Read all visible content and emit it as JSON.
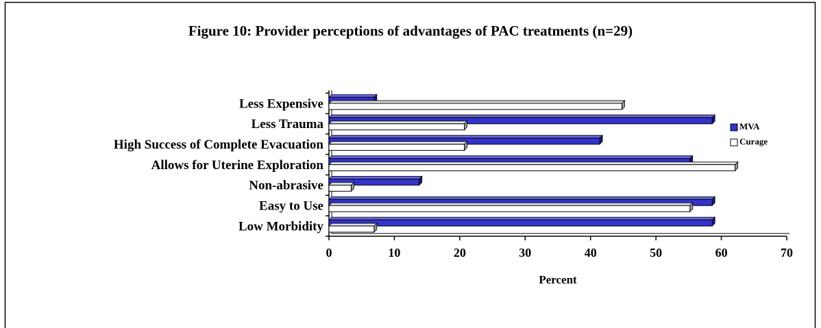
{
  "chart_data": {
    "type": "hbar",
    "title": "Figure 10: Provider perceptions of advantages of PAC treatments (n=29)",
    "categories": [
      "Less Expensive",
      "Less Trauma",
      "High Success of Complete Evacuation",
      "Allows for Uterine Exploration",
      "Non-abrasive",
      "Easy to Use",
      "Low Morbidity"
    ],
    "series": [
      {
        "name": "MVA",
        "color": "#3333cc",
        "values": [
          6.9,
          58.6,
          41.4,
          55.2,
          13.8,
          58.6,
          58.6
        ]
      },
      {
        "name": "Curage",
        "color": "#ffffff",
        "values": [
          44.8,
          20.7,
          20.7,
          62.1,
          3.4,
          55.2,
          6.9
        ]
      }
    ],
    "x_label": "Percent",
    "xlim": [
      0,
      70
    ],
    "xticks": [
      0,
      10,
      20,
      30,
      40,
      50,
      60,
      70
    ],
    "legend": "right"
  }
}
